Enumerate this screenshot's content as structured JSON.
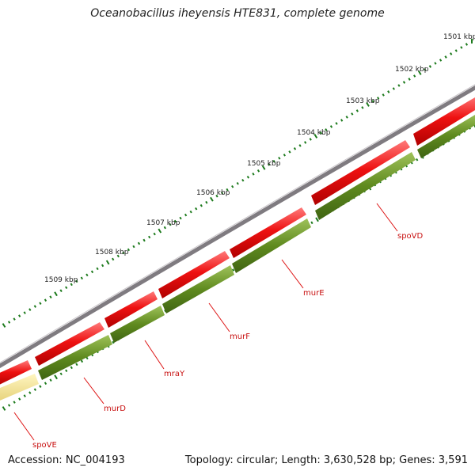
{
  "title": "Oceanobacillus iheyensis HTE831, complete genome",
  "accession": "Accession: NC_004193",
  "summary": "Topology: circular; Length: 3,630,528 bp; Genes: 3,591",
  "colors": {
    "backbone": "#7f7b80",
    "forward_gene": "#ee1111",
    "reverse_gene": "#5f8a1f",
    "rna_gene": "#efe08f",
    "tick": "#1c7a1c",
    "label_line": "#dd1111",
    "label_text": "#c81010"
  },
  "kbp_labels": [
    "1501 kbp",
    "1502 kbp",
    "1503 kbp",
    "1504 kbp",
    "1505 kbp",
    "1506 kbp",
    "1507 kbp",
    "1508 kbp",
    "1509 kbp"
  ],
  "gene_labels": [
    "spoVD",
    "murE",
    "murF",
    "mraY",
    "murD",
    "spoVE"
  ]
}
